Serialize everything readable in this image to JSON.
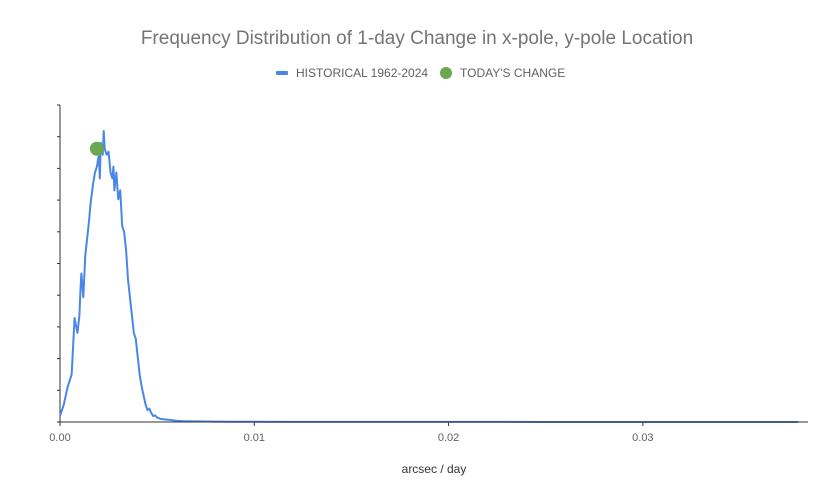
{
  "chart_data": {
    "type": "line",
    "title": "Frequency Distribution of 1-day Change in x-pole, y-pole Location",
    "xlabel": "arcsec / day",
    "ylabel": "",
    "xlim": [
      0,
      0.0385
    ],
    "ylim": [
      0,
      1
    ],
    "x_ticks": [
      0,
      0.01,
      0.02,
      0.03
    ],
    "x_tick_labels": [
      "0.00",
      "0.01",
      "0.02",
      "0.03"
    ],
    "y_ticks_labeled": false,
    "grid": false,
    "legend_position": "top",
    "series": [
      {
        "name": "HISTORICAL 1962-2024",
        "kind": "line",
        "color": "#4a86e8",
        "x": [
          0.0,
          0.0002,
          0.0004,
          0.0006,
          0.00075,
          0.0009,
          0.001,
          0.00105,
          0.0011,
          0.0012,
          0.0013,
          0.0014,
          0.0015,
          0.00155,
          0.0016,
          0.0017,
          0.0018,
          0.0019,
          0.002,
          0.00205,
          0.0021,
          0.0022,
          0.00225,
          0.0023,
          0.0024,
          0.0025,
          0.0026,
          0.0027,
          0.00275,
          0.0028,
          0.0029,
          0.003,
          0.0031,
          0.0032,
          0.0033,
          0.0034,
          0.0035,
          0.0036,
          0.0037,
          0.0038,
          0.0039,
          0.004,
          0.0041,
          0.0042,
          0.0043,
          0.0044,
          0.0045,
          0.0046,
          0.0047,
          0.0048,
          0.0049,
          0.005,
          0.0052,
          0.0055,
          0.0058,
          0.006,
          0.0063,
          0.0066,
          0.007,
          0.0075,
          0.008,
          0.009,
          0.01,
          0.012,
          0.015,
          0.02,
          0.025,
          0.03,
          0.035,
          0.038
        ],
        "y": [
          0.02,
          0.06,
          0.12,
          0.16,
          0.35,
          0.3,
          0.36,
          0.44,
          0.5,
          0.42,
          0.56,
          0.62,
          0.68,
          0.72,
          0.75,
          0.8,
          0.84,
          0.86,
          0.9,
          0.82,
          0.94,
          0.9,
          0.98,
          0.92,
          0.9,
          0.91,
          0.84,
          0.82,
          0.86,
          0.78,
          0.84,
          0.75,
          0.78,
          0.66,
          0.64,
          0.58,
          0.48,
          0.42,
          0.36,
          0.3,
          0.28,
          0.22,
          0.16,
          0.12,
          0.09,
          0.06,
          0.04,
          0.045,
          0.03,
          0.02,
          0.022,
          0.015,
          0.01,
          0.008,
          0.006,
          0.004,
          0.003,
          0.0025,
          0.002,
          0.0015,
          0.0012,
          0.001,
          0.0008,
          0.0005,
          0.0004,
          0.0003,
          0.0002,
          0.0002,
          0.0002,
          0.0002
        ]
      },
      {
        "name": "TODAY'S CHANGE",
        "kind": "point",
        "color": "#6aa84f",
        "x": [
          0.0019
        ],
        "y": [
          0.92
        ]
      }
    ]
  }
}
